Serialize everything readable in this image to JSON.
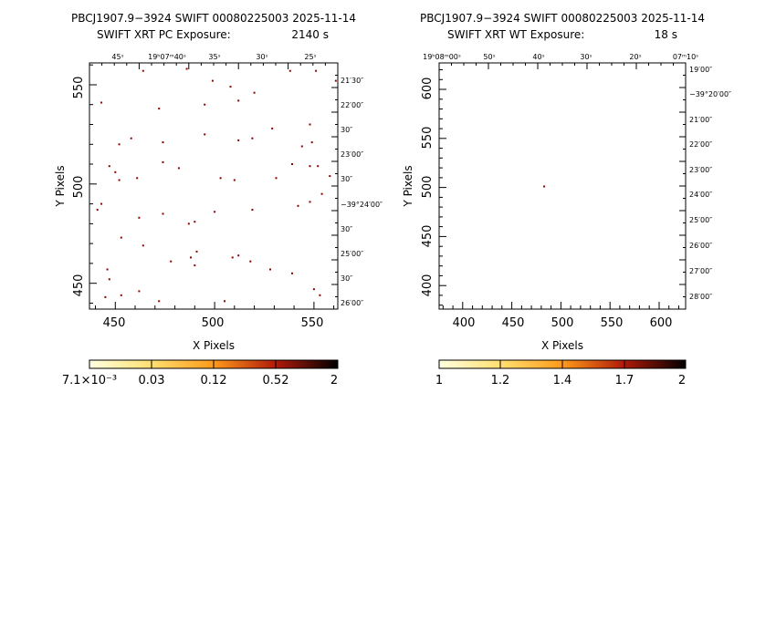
{
  "panels": [
    {
      "title_line1": "PBCJ1907.9−3924 SWIFT 00080225003 2025-11-14",
      "title_line2_label": "SWIFT XRT PC Exposure:",
      "title_line2_value": "2140 s",
      "xlabel": "X Pixels",
      "ylabel": "Y Pixels",
      "x_ticks": [
        "450",
        "500",
        "550"
      ],
      "y_ticks": [
        "450",
        "500",
        "550"
      ],
      "ra_labels": [
        "45ˢ",
        "19ʰ07ᵐ40ˢ",
        "35ˢ",
        "30ˢ",
        "25ˢ"
      ],
      "dec_labels": [
        "21′30″",
        "22′00″",
        "30″",
        "23′00″",
        "30″",
        "−39°24′00″",
        "30″",
        "25′00″",
        "30″",
        "26′00″"
      ],
      "colorbar_ticks": [
        "7.1×10⁻³",
        "0.03",
        "0.12",
        "0.52",
        "2"
      ]
    },
    {
      "title_line1": "PBCJ1907.9−3924 SWIFT 00080225003 2025-11-14",
      "title_line2_label": "SWIFT XRT WT Exposure:",
      "title_line2_value": "18 s",
      "xlabel": "X Pixels",
      "ylabel": "Y Pixels",
      "x_ticks": [
        "400",
        "450",
        "500",
        "550",
        "600"
      ],
      "y_ticks": [
        "400",
        "450",
        "500",
        "550",
        "600"
      ],
      "ra_labels": [
        "19ʰ08ᵐ00ˢ",
        "50ˢ",
        "40ˢ",
        "30ˢ",
        "20ˢ",
        "07ᵐ10ˢ"
      ],
      "dec_labels": [
        "19′00″",
        "−39°20′00″",
        "21′00″",
        "22′00″",
        "23′00″",
        "24′00″",
        "25′00″",
        "26′00″",
        "27′00″",
        "28′00″"
      ],
      "colorbar_ticks": [
        "1",
        "1.2",
        "1.4",
        "1.7",
        "2"
      ]
    }
  ],
  "colors": {
    "event": "#8b0000",
    "cmap": [
      "#ffffe0",
      "#ffd700",
      "#ff8c00",
      "#8b0000",
      "#000000"
    ]
  },
  "chart_data": [
    {
      "type": "scatter",
      "title": "PBCJ1907.9−3924 SWIFT 00080225003 2025-11-14 / SWIFT XRT PC Exposure: 2140 s",
      "xlabel": "X Pixels",
      "ylabel": "Y Pixels",
      "xlim": [
        437,
        562
      ],
      "ylim": [
        437,
        561
      ],
      "colorbar_scale": "log",
      "colorbar_range": [
        0.0071,
        2
      ],
      "points": [
        [
          464,
          557
        ],
        [
          486,
          558
        ],
        [
          499,
          552
        ],
        [
          508,
          549
        ],
        [
          520,
          546
        ],
        [
          538,
          557
        ],
        [
          551,
          557
        ],
        [
          561,
          552
        ],
        [
          443,
          541
        ],
        [
          472,
          538
        ],
        [
          495,
          540
        ],
        [
          512,
          542
        ],
        [
          529,
          528
        ],
        [
          548,
          530
        ],
        [
          452,
          520
        ],
        [
          458,
          523
        ],
        [
          474,
          521
        ],
        [
          495,
          525
        ],
        [
          512,
          522
        ],
        [
          519,
          523
        ],
        [
          544,
          519
        ],
        [
          549,
          521
        ],
        [
          447,
          509
        ],
        [
          450,
          506
        ],
        [
          452,
          502
        ],
        [
          461,
          503
        ],
        [
          474,
          511
        ],
        [
          482,
          508
        ],
        [
          503,
          503
        ],
        [
          510,
          502
        ],
        [
          531,
          503
        ],
        [
          539,
          510
        ],
        [
          548,
          509
        ],
        [
          552,
          509
        ],
        [
          558,
          504
        ],
        [
          441,
          487
        ],
        [
          443,
          490
        ],
        [
          462,
          483
        ],
        [
          474,
          485
        ],
        [
          487,
          480
        ],
        [
          490,
          481
        ],
        [
          500,
          486
        ],
        [
          519,
          487
        ],
        [
          542,
          489
        ],
        [
          548,
          491
        ],
        [
          554,
          495
        ],
        [
          453,
          473
        ],
        [
          464,
          469
        ],
        [
          478,
          461
        ],
        [
          488,
          463
        ],
        [
          491,
          466
        ],
        [
          509,
          463
        ],
        [
          512,
          464
        ],
        [
          518,
          461
        ],
        [
          528,
          457
        ],
        [
          539,
          455
        ],
        [
          446,
          457
        ],
        [
          447,
          452
        ],
        [
          453,
          444
        ],
        [
          445,
          443
        ],
        [
          462,
          446
        ],
        [
          472,
          441
        ],
        [
          490,
          459
        ],
        [
          505,
          441
        ],
        [
          553,
          444
        ],
        [
          550,
          447
        ]
      ]
    },
    {
      "type": "scatter",
      "title": "PBCJ1907.9−3924 SWIFT 00080225003 2025-11-14 / SWIFT XRT WT Exposure: 18 s",
      "xlabel": "X Pixels",
      "ylabel": "Y Pixels",
      "xlim": [
        376,
        627
      ],
      "ylim": [
        376,
        627
      ],
      "colorbar_range": [
        1,
        2
      ],
      "points": [
        [
          483,
          501
        ]
      ]
    }
  ]
}
